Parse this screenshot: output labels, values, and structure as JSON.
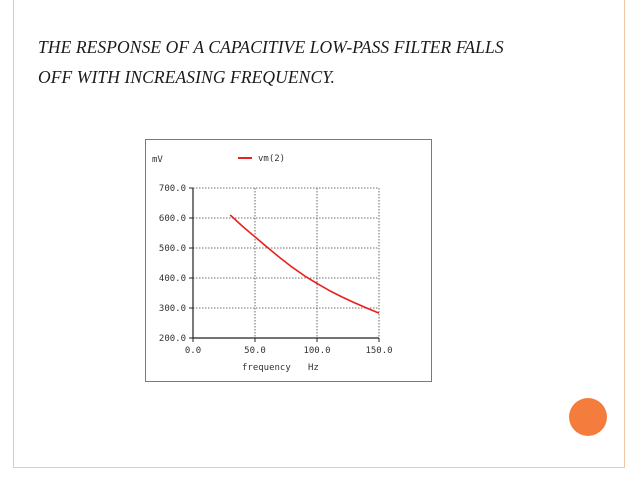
{
  "slide": {
    "caption_line1": "THE RESPONSE OF A CAPACITIVE LOW-PASS FILTER FALLS",
    "caption_line2": "OFF WITH INCREASING FREQUENCY.",
    "accent_color": "#f47c3c",
    "frame_color": "#f3c6a3"
  },
  "chart_data": {
    "type": "line",
    "title": "",
    "y_unit": "mV",
    "xlabel": "frequency",
    "x_unit": "Hz",
    "xlim": [
      0,
      150
    ],
    "ylim": [
      200,
      700
    ],
    "x_ticks": [
      0,
      50,
      100,
      150
    ],
    "x_tick_labels": [
      "0.0",
      "50.0",
      "100.0",
      "150.0"
    ],
    "y_ticks": [
      200,
      300,
      400,
      500,
      600,
      700
    ],
    "y_tick_labels": [
      "200.0",
      "300.0",
      "400.0",
      "500.0",
      "600.0",
      "700.0"
    ],
    "grid": true,
    "legend_position": "top",
    "series": [
      {
        "name": "vm(2)",
        "color": "#e8201e",
        "x": [
          30,
          40,
          50,
          60,
          70,
          80,
          90,
          100,
          110,
          120,
          130,
          140,
          150
        ],
        "y": [
          610,
          572,
          537,
          502,
          468,
          436,
          407,
          382,
          358,
          337,
          318,
          300,
          283
        ]
      }
    ]
  }
}
